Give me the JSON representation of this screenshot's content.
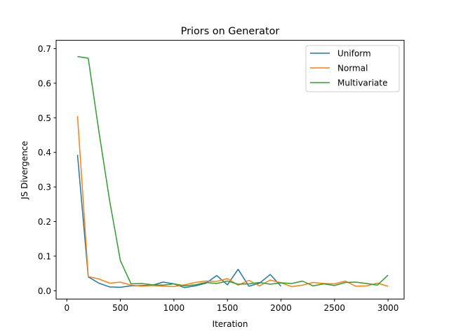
{
  "chart_data": {
    "type": "line",
    "title": "Priors on Generator",
    "xlabel": "Iteration",
    "ylabel": "JS Divergence",
    "xlim": [
      -100,
      3150
    ],
    "ylim": [
      -0.024,
      0.724
    ],
    "xticks": [
      0,
      500,
      1000,
      1500,
      2000,
      2500,
      3000
    ],
    "xtick_labels": [
      "0",
      "500",
      "1000",
      "1500",
      "2000",
      "2500",
      "3000"
    ],
    "yticks": [
      0.0,
      0.1,
      0.2,
      0.3,
      0.4,
      0.5,
      0.6,
      0.7
    ],
    "ytick_labels": [
      "0.0",
      "0.1",
      "0.2",
      "0.3",
      "0.4",
      "0.5",
      "0.6",
      "0.7"
    ],
    "grid": false,
    "legend_position": "top-right",
    "series": [
      {
        "name": "Uniform",
        "color": "#1f77b4",
        "x": [
          100,
          200,
          300,
          400,
          500,
          600,
          700,
          800,
          900,
          1000,
          1100,
          1200,
          1300,
          1400,
          1500,
          1600,
          1700,
          1800,
          1900,
          2000
        ],
        "values": [
          0.393,
          0.04,
          0.022,
          0.011,
          0.01,
          0.014,
          0.015,
          0.016,
          0.025,
          0.02,
          0.009,
          0.014,
          0.022,
          0.044,
          0.017,
          0.062,
          0.013,
          0.022,
          0.047,
          0.013
        ]
      },
      {
        "name": "Normal",
        "color": "#ff7f0e",
        "x": [
          100,
          200,
          300,
          400,
          500,
          600,
          700,
          800,
          900,
          1000,
          1100,
          1200,
          1300,
          1400,
          1500,
          1600,
          1700,
          1800,
          1900,
          2000,
          2100,
          2200,
          2300,
          2400,
          2500,
          2600,
          2700,
          2800,
          2900,
          3000
        ],
        "values": [
          0.505,
          0.041,
          0.034,
          0.022,
          0.025,
          0.016,
          0.013,
          0.015,
          0.013,
          0.012,
          0.017,
          0.024,
          0.028,
          0.027,
          0.035,
          0.016,
          0.03,
          0.014,
          0.031,
          0.023,
          0.012,
          0.016,
          0.024,
          0.021,
          0.02,
          0.028,
          0.013,
          0.014,
          0.022,
          0.013
        ]
      },
      {
        "name": "Multivariate",
        "color": "#2ca02c",
        "x": [
          100,
          200,
          300,
          400,
          500,
          600,
          700,
          800,
          900,
          1000,
          1100,
          1200,
          1300,
          1400,
          1500,
          1600,
          1700,
          1800,
          1900,
          2000,
          2100,
          2200,
          2300,
          2400,
          2500,
          2600,
          2700,
          2800,
          2900,
          3000
        ],
        "values": [
          0.677,
          0.672,
          0.46,
          0.26,
          0.087,
          0.02,
          0.021,
          0.017,
          0.016,
          0.02,
          0.014,
          0.017,
          0.024,
          0.021,
          0.028,
          0.019,
          0.02,
          0.024,
          0.019,
          0.023,
          0.021,
          0.028,
          0.014,
          0.02,
          0.015,
          0.024,
          0.025,
          0.021,
          0.016,
          0.045
        ]
      }
    ]
  }
}
